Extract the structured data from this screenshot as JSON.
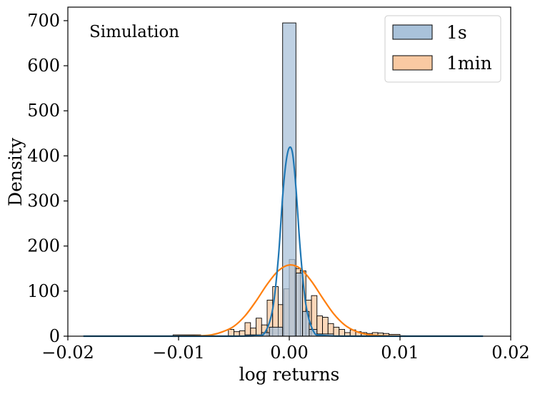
{
  "chart_data": {
    "type": "histogram",
    "title": "",
    "annotation": "Simulation",
    "xlabel": "log returns",
    "ylabel": "Density",
    "xlim": [
      -0.02,
      0.02
    ],
    "ylim": [
      0,
      730
    ],
    "x_ticks": [
      -0.02,
      -0.01,
      0.0,
      0.01,
      0.02
    ],
    "x_tick_labels": [
      "−0.02",
      "−0.01",
      "0.00",
      "0.01",
      "0.02"
    ],
    "y_ticks": [
      0,
      100,
      200,
      300,
      400,
      500,
      600,
      700
    ],
    "y_tick_labels": [
      "0",
      "100",
      "200",
      "300",
      "400",
      "500",
      "600",
      "700"
    ],
    "grid": false,
    "legend_position": "top-right",
    "series": [
      {
        "name": "1s",
        "color": "#1f77b4",
        "fill": "#a9c2da",
        "bins": [
          {
            "x0": -0.0006,
            "x1": 0.0006,
            "density": 695
          }
        ],
        "kde": [
          [
            -0.0186,
            0
          ],
          [
            -0.006,
            0
          ],
          [
            -0.003,
            1
          ],
          [
            -0.0022,
            8
          ],
          [
            -0.0015,
            60
          ],
          [
            -0.001,
            170
          ],
          [
            -0.0006,
            310
          ],
          [
            -0.0003,
            385
          ],
          [
            0.0,
            418
          ],
          [
            0.0003,
            405
          ],
          [
            0.0006,
            330
          ],
          [
            0.001,
            190
          ],
          [
            0.0015,
            70
          ],
          [
            0.0022,
            10
          ],
          [
            0.003,
            2
          ],
          [
            0.006,
            0
          ],
          [
            0.0175,
            0
          ]
        ]
      },
      {
        "name": "1min",
        "color": "#ff7f0e",
        "fill": "#f9c9a2",
        "bins": [
          {
            "x0": -0.0105,
            "x1": -0.008,
            "density": 3
          },
          {
            "x0": -0.0055,
            "x1": -0.005,
            "density": 15
          },
          {
            "x0": -0.005,
            "x1": -0.0045,
            "density": 10
          },
          {
            "x0": -0.0045,
            "x1": -0.004,
            "density": 12
          },
          {
            "x0": -0.004,
            "x1": -0.0035,
            "density": 30
          },
          {
            "x0": -0.0035,
            "x1": -0.003,
            "density": 18
          },
          {
            "x0": -0.003,
            "x1": -0.0025,
            "density": 40
          },
          {
            "x0": -0.0025,
            "x1": -0.002,
            "density": 25
          },
          {
            "x0": -0.002,
            "x1": -0.0015,
            "density": 80
          },
          {
            "x0": -0.0015,
            "x1": -0.001,
            "density": 110
          },
          {
            "x0": -0.001,
            "x1": -0.0005,
            "density": 70
          },
          {
            "x0": -0.0005,
            "x1": 0.0,
            "density": 105
          },
          {
            "x0": 0.0,
            "x1": 0.0005,
            "density": 170
          },
          {
            "x0": 0.0005,
            "x1": 0.001,
            "density": 150
          },
          {
            "x0": 0.001,
            "x1": 0.0015,
            "density": 145
          },
          {
            "x0": 0.0015,
            "x1": 0.002,
            "density": 80
          },
          {
            "x0": 0.002,
            "x1": 0.0025,
            "density": 90
          },
          {
            "x0": 0.0025,
            "x1": 0.003,
            "density": 45
          },
          {
            "x0": 0.003,
            "x1": 0.0035,
            "density": 42
          },
          {
            "x0": 0.0035,
            "x1": 0.004,
            "density": 28
          },
          {
            "x0": 0.004,
            "x1": 0.0045,
            "density": 20
          },
          {
            "x0": 0.0045,
            "x1": 0.005,
            "density": 15
          },
          {
            "x0": 0.005,
            "x1": 0.0055,
            "density": 8
          },
          {
            "x0": 0.0055,
            "x1": 0.006,
            "density": 14
          },
          {
            "x0": 0.006,
            "x1": 0.0065,
            "density": 10
          },
          {
            "x0": 0.0065,
            "x1": 0.007,
            "density": 8
          },
          {
            "x0": 0.007,
            "x1": 0.0075,
            "density": 6
          },
          {
            "x0": 0.0075,
            "x1": 0.008,
            "density": 8
          },
          {
            "x0": 0.008,
            "x1": 0.0085,
            "density": 7
          },
          {
            "x0": 0.0085,
            "x1": 0.009,
            "density": 6
          },
          {
            "x0": 0.009,
            "x1": 0.01,
            "density": 4
          }
        ],
        "kde": [
          [
            -0.0105,
            0
          ],
          [
            -0.008,
            1
          ],
          [
            -0.007,
            3
          ],
          [
            -0.006,
            10
          ],
          [
            -0.005,
            22
          ],
          [
            -0.004,
            45
          ],
          [
            -0.003,
            78
          ],
          [
            -0.002,
            115
          ],
          [
            -0.001,
            145
          ],
          [
            0.0,
            158
          ],
          [
            0.001,
            150
          ],
          [
            0.002,
            122
          ],
          [
            0.003,
            85
          ],
          [
            0.004,
            50
          ],
          [
            0.005,
            25
          ],
          [
            0.006,
            11
          ],
          [
            0.007,
            4
          ],
          [
            0.008,
            1.5
          ],
          [
            0.0105,
            0
          ]
        ]
      },
      {
        "name": "1s",
        "color": "#1f77b4",
        "fill": "#a9c2da",
        "overlay_bins": [
          {
            "x0": -0.004,
            "x1": -0.0025,
            "density": 3
          },
          {
            "x0": -0.0025,
            "x1": -0.0018,
            "density": 8
          },
          {
            "x0": -0.0018,
            "x1": -0.0006,
            "density": 20
          },
          {
            "x0": 0.0006,
            "x1": 0.0012,
            "density": 140
          },
          {
            "x0": 0.0012,
            "x1": 0.0018,
            "density": 55
          },
          {
            "x0": 0.0018,
            "x1": 0.0025,
            "density": 15
          },
          {
            "x0": 0.0025,
            "x1": 0.004,
            "density": 5
          }
        ]
      }
    ]
  }
}
